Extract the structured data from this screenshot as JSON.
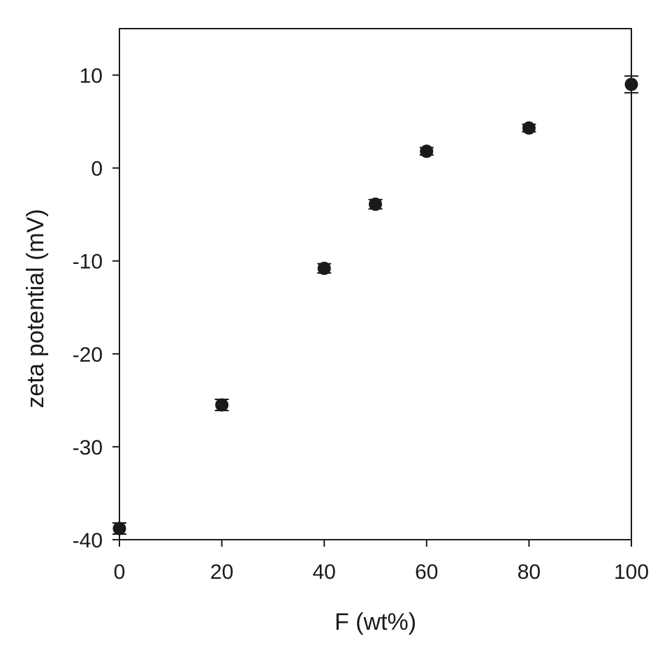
{
  "chart_data": {
    "type": "scatter",
    "title": "",
    "xlabel": "F (wt%)",
    "ylabel": "zeta potential (mV)",
    "xlim": [
      0,
      100
    ],
    "ylim": [
      -40,
      15
    ],
    "x_ticks": [
      0,
      20,
      40,
      60,
      80,
      100
    ],
    "y_ticks": [
      -40,
      -30,
      -20,
      -10,
      0,
      10
    ],
    "x_tick_labels": [
      "0",
      "20",
      "40",
      "60",
      "80",
      "100"
    ],
    "y_tick_labels": [
      "-40",
      "-30",
      "-20",
      "-10",
      "0",
      "10"
    ],
    "grid": false,
    "legend": "none",
    "marker_color": "#1a1a1a",
    "series": [
      {
        "x": [
          0,
          20,
          40,
          50,
          60,
          80,
          100
        ],
        "y": [
          -38.8,
          -25.5,
          -10.8,
          -3.9,
          1.8,
          4.3,
          9.0
        ],
        "err": [
          0.6,
          0.6,
          0.5,
          0.5,
          0.4,
          0.4,
          0.9
        ]
      }
    ]
  }
}
